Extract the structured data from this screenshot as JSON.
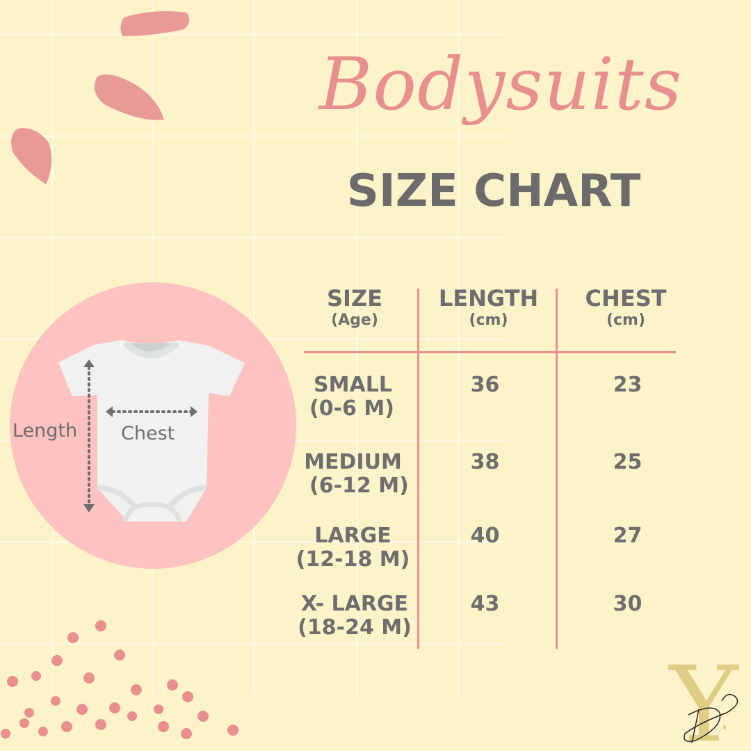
{
  "title": "Bodysuits",
  "subtitle": "SIZE CHART",
  "diagram": {
    "length_label": "Length",
    "chest_label": "Chest"
  },
  "table": {
    "headers": [
      {
        "label": "SIZE",
        "unit": "(Age)"
      },
      {
        "label": "LENGTH",
        "unit": "(cm)"
      },
      {
        "label": "CHEST",
        "unit": "(cm)"
      }
    ],
    "rows": [
      {
        "size": "SMALL",
        "age": "(0-6 M)",
        "length": "36",
        "chest": "23"
      },
      {
        "size": "MEDIUM",
        "age": "(6-12 M)",
        "length": "38",
        "chest": "25"
      },
      {
        "size": "LARGE",
        "age": "(12-18 M)",
        "length": "40",
        "chest": "27"
      },
      {
        "size": "X- LARGE",
        "age": "(18-24 M)",
        "length": "43",
        "chest": "30"
      }
    ]
  },
  "logo": {
    "text": "Y DJ"
  },
  "colors": {
    "background": "#fcf3c9",
    "accent": "#e8908f",
    "circle": "#fec3c1",
    "text": "#6e6e6e"
  }
}
